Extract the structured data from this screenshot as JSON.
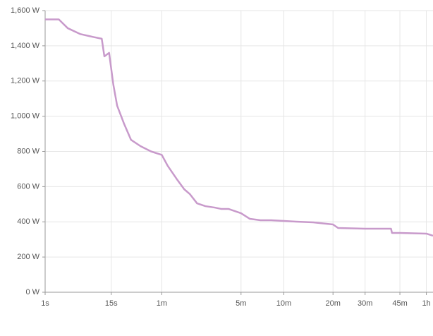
{
  "chart_data": {
    "type": "line",
    "x": [
      1,
      2,
      3,
      5,
      8,
      11,
      12,
      14,
      16,
      18,
      22,
      27,
      35,
      46,
      60,
      69,
      86,
      100,
      113,
      131,
      155,
      186,
      211,
      241,
      300,
      349,
      416,
      494,
      600,
      721,
      918,
      1200,
      1283,
      1800,
      2441,
      2470,
      2700,
      3600,
      3860
    ],
    "series": [
      {
        "color": "#c89acb",
        "values": [
          1550,
          1550,
          1500,
          1467,
          1451,
          1440,
          1340,
          1360,
          1180,
          1060,
          960,
          866,
          830,
          800,
          780,
          718,
          638,
          585,
          557,
          505,
          489,
          481,
          473,
          473,
          449,
          417,
          409,
          409,
          405,
          401,
          397,
          385,
          365,
          361,
          361,
          337,
          337,
          333,
          321
        ]
      }
    ],
    "xscale": "power",
    "xexponent": 0.2,
    "xlim": [
      1,
      3860
    ],
    "xticks": [
      {
        "value": 1,
        "label": "1s"
      },
      {
        "value": 15,
        "label": "15s"
      },
      {
        "value": 60,
        "label": "1m"
      },
      {
        "value": 300,
        "label": "5m"
      },
      {
        "value": 600,
        "label": "10m"
      },
      {
        "value": 1200,
        "label": "20m"
      },
      {
        "value": 1800,
        "label": "30m"
      },
      {
        "value": 2700,
        "label": "45m"
      },
      {
        "value": 3600,
        "label": "1h"
      }
    ],
    "ylim": [
      0,
      1600
    ],
    "yticks": [
      {
        "value": 0,
        "label": "0 W"
      },
      {
        "value": 200,
        "label": "200 W"
      },
      {
        "value": 400,
        "label": "400 W"
      },
      {
        "value": 600,
        "label": "600 W"
      },
      {
        "value": 800,
        "label": "800 W"
      },
      {
        "value": 1000,
        "label": "1,000 W"
      },
      {
        "value": 1200,
        "label": "1,200 W"
      },
      {
        "value": 1400,
        "label": "1,400 W"
      },
      {
        "value": 1600,
        "label": "1,600 W"
      }
    ],
    "grid": true
  }
}
